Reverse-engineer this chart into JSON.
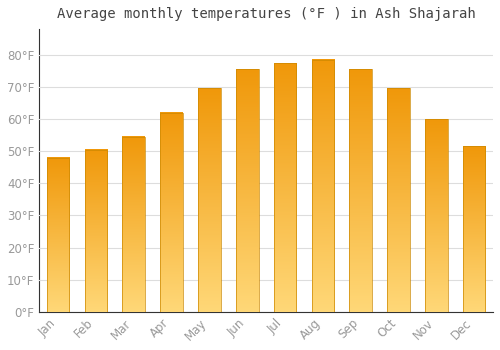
{
  "title": "Average monthly temperatures (°F ) in Ash Shajarah",
  "months": [
    "Jan",
    "Feb",
    "Mar",
    "Apr",
    "May",
    "Jun",
    "Jul",
    "Aug",
    "Sep",
    "Oct",
    "Nov",
    "Dec"
  ],
  "values": [
    48,
    50.5,
    54.5,
    62,
    69.5,
    75.5,
    77.5,
    78.5,
    75.5,
    69.5,
    60,
    51.5
  ],
  "bar_color": "#FFA500",
  "bar_gradient_top": "#F5A623",
  "bar_gradient_mid": "#FFD060",
  "bar_gradient_bottom": "#FFBE00",
  "background_color": "#FFFFFF",
  "grid_color": "#DDDDDD",
  "text_color": "#999999",
  "axis_color": "#333333",
  "ylim": [
    0,
    88
  ],
  "yticks": [
    0,
    10,
    20,
    30,
    40,
    50,
    60,
    70,
    80
  ],
  "ytick_labels": [
    "0°F",
    "10°F",
    "20°F",
    "30°F",
    "40°F",
    "50°F",
    "60°F",
    "70°F",
    "80°F"
  ],
  "title_fontsize": 10,
  "tick_fontsize": 8.5
}
